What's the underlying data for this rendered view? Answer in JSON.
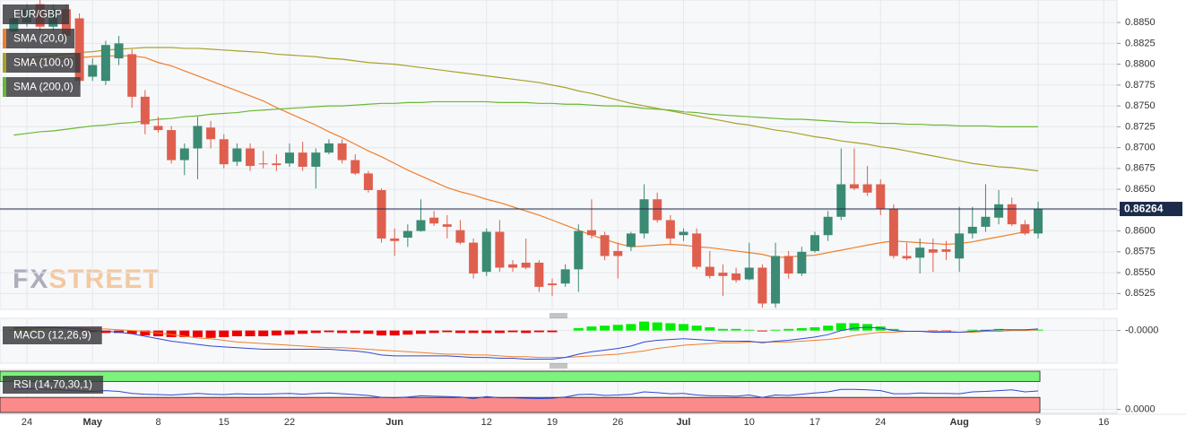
{
  "chart_data": {
    "type": "candlestick",
    "symbol": "EUR/GBP",
    "watermark": {
      "prefix": "FX",
      "suffix": "STREET"
    },
    "grid": true,
    "up_color": "#3b8a74",
    "down_color": "#df5f4e",
    "price_line_color": "#1c2b4a",
    "categories": [
      null,
      "24",
      null,
      null,
      null,
      null,
      "May",
      null,
      null,
      null,
      null,
      "8",
      null,
      null,
      null,
      null,
      "15",
      null,
      null,
      null,
      null,
      "22",
      null,
      null,
      null,
      null,
      null,
      null,
      null,
      "Jun",
      null,
      null,
      null,
      null,
      null,
      null,
      "12",
      null,
      null,
      null,
      null,
      "19",
      null,
      null,
      null,
      null,
      "26",
      null,
      null,
      null,
      null,
      "Jul",
      null,
      null,
      null,
      null,
      "10",
      null,
      null,
      null,
      null,
      "17",
      null,
      null,
      null,
      null,
      "24",
      null,
      null,
      null,
      null,
      null,
      "Aug",
      null,
      null,
      null,
      null,
      null,
      "9",
      null,
      null,
      null,
      null,
      "16"
    ],
    "open": [
      0.8839,
      0.885,
      0.8872,
      0.8845,
      0.8866,
      0.8855,
      0.8785,
      0.878,
      0.8807,
      0.8812,
      0.8761,
      0.8726,
      0.8721,
      0.8685,
      0.8699,
      0.8724,
      0.871,
      0.8683,
      0.8699,
      0.8681,
      0.8681,
      0.8681,
      0.8694,
      0.8677,
      0.8694,
      0.8705,
      0.8685,
      0.8669,
      0.8649,
      0.8591,
      0.8592,
      0.86,
      0.8616,
      0.8608,
      0.8601,
      0.8586,
      0.8551,
      0.8599,
      0.856,
      0.8562,
      0.8562,
      0.8537,
      0.8537,
      0.8554,
      0.8601,
      0.8595,
      0.8576,
      0.8581,
      0.8597,
      0.8638,
      0.8613,
      0.8595,
      0.8597,
      0.8557,
      0.855,
      0.8549,
      0.8542,
      0.8556,
      0.8513,
      0.857,
      0.8549,
      0.8576,
      0.8595,
      0.8617,
      0.8656,
      0.8656,
      0.8656,
      0.8627,
      0.857,
      0.8568,
      0.8578,
      0.8578,
      0.8567,
      0.8597,
      0.8605,
      0.8616,
      0.8632,
      0.8608,
      0.8597,
      null,
      null,
      null,
      null,
      null
    ],
    "high": [
      0.8861,
      0.8872,
      0.8877,
      0.8872,
      0.8872,
      0.8861,
      0.8807,
      0.8828,
      0.8834,
      0.8818,
      0.8769,
      0.8737,
      0.8726,
      0.8705,
      0.8737,
      0.8732,
      0.8716,
      0.8705,
      0.8705,
      0.8696,
      0.8692,
      0.8705,
      0.8707,
      0.8699,
      0.871,
      0.871,
      0.8692,
      0.8672,
      0.8651,
      0.8603,
      0.8608,
      0.8638,
      0.8624,
      0.8619,
      0.8613,
      0.8591,
      0.8603,
      0.8613,
      0.8565,
      0.8591,
      0.8565,
      0.8543,
      0.856,
      0.8608,
      0.8638,
      0.8599,
      0.8586,
      0.8599,
      0.8656,
      0.8646,
      0.8619,
      0.8603,
      0.8603,
      0.8576,
      0.856,
      0.8556,
      0.8586,
      0.856,
      0.8586,
      0.8576,
      0.8581,
      0.8599,
      0.8624,
      0.8699,
      0.8699,
      0.8678,
      0.8662,
      0.8632,
      0.8586,
      0.8591,
      0.8591,
      0.8588,
      0.8629,
      0.8629,
      0.8656,
      0.8649,
      0.864,
      0.8613,
      0.8635,
      null,
      null,
      null,
      null,
      null
    ],
    "low": [
      0.8834,
      0.8845,
      0.8839,
      0.8839,
      0.8828,
      0.8775,
      0.878,
      0.8775,
      0.8799,
      0.8748,
      0.8716,
      0.8718,
      0.8681,
      0.8667,
      0.8662,
      0.8699,
      0.8675,
      0.8678,
      0.8672,
      0.8675,
      0.8672,
      0.8677,
      0.8672,
      0.8651,
      0.8692,
      0.8681,
      0.8667,
      0.8646,
      0.8586,
      0.857,
      0.8581,
      0.8599,
      0.8606,
      0.8591,
      0.8584,
      0.8543,
      0.8546,
      0.8551,
      0.8551,
      0.8554,
      0.8527,
      0.8522,
      0.8533,
      0.8527,
      0.8591,
      0.8565,
      0.8543,
      0.8576,
      0.8591,
      0.861,
      0.8584,
      0.8588,
      0.8554,
      0.8543,
      0.8522,
      0.8538,
      0.8541,
      0.8508,
      0.8508,
      0.8543,
      0.8546,
      0.8574,
      0.8588,
      0.8613,
      0.8649,
      0.8642,
      0.8619,
      0.8567,
      0.8565,
      0.8549,
      0.8551,
      0.8565,
      0.8551,
      0.8591,
      0.8599,
      0.8608,
      0.8606,
      0.8595,
      0.8591,
      null,
      null,
      null,
      null,
      null
    ],
    "close": [
      0.8855,
      0.8866,
      0.8845,
      0.8866,
      0.8834,
      0.878,
      0.8799,
      0.8823,
      0.8825,
      0.8761,
      0.8728,
      0.8721,
      0.8685,
      0.8699,
      0.8726,
      0.871,
      0.868,
      0.8699,
      0.8678,
      0.868,
      0.8679,
      0.8694,
      0.8677,
      0.8694,
      0.8705,
      0.8685,
      0.8669,
      0.8649,
      0.8591,
      0.8588,
      0.86,
      0.8613,
      0.8609,
      0.8605,
      0.8586,
      0.8549,
      0.8599,
      0.8556,
      0.8556,
      0.8556,
      0.8533,
      0.8535,
      0.8554,
      0.86,
      0.8595,
      0.857,
      0.857,
      0.8597,
      0.8638,
      0.8613,
      0.8591,
      0.8599,
      0.8557,
      0.8546,
      0.8546,
      0.8541,
      0.8556,
      0.8513,
      0.857,
      0.8549,
      0.8575,
      0.8595,
      0.8617,
      0.8656,
      0.8651,
      0.8646,
      0.8627,
      0.857,
      0.8567,
      0.858,
      0.8574,
      0.8575,
      0.8597,
      0.8605,
      0.8617,
      0.8632,
      0.8608,
      0.8597,
      0.86264,
      null,
      null,
      null,
      null,
      null
    ],
    "ylim": [
      0.8506,
      0.8877
    ],
    "yticks": [
      {
        "value": 0.8525,
        "label": "0.8525"
      },
      {
        "value": 0.855,
        "label": "0.8550"
      },
      {
        "value": 0.8575,
        "label": "0.8575"
      },
      {
        "value": 0.86,
        "label": "0.8600"
      },
      {
        "value": 0.8625,
        "label": "0.8625"
      },
      {
        "value": 0.865,
        "label": "0.8650"
      },
      {
        "value": 0.8675,
        "label": "0.8675"
      },
      {
        "value": 0.87,
        "label": "0.8700"
      },
      {
        "value": 0.8725,
        "label": "0.8725"
      },
      {
        "value": 0.875,
        "label": "0.8750"
      },
      {
        "value": 0.8775,
        "label": "0.8775"
      },
      {
        "value": 0.88,
        "label": "0.8800"
      },
      {
        "value": 0.8825,
        "label": "0.8825"
      },
      {
        "value": 0.885,
        "label": "0.8850"
      }
    ],
    "series": [
      {
        "name": "SMA (20,0)",
        "color": "#f07f2a",
        "values": [
          0.88,
          0.8802,
          0.8804,
          0.8806,
          0.8807,
          0.8808,
          0.8809,
          0.881,
          0.881,
          0.881,
          0.8808,
          0.8802,
          0.8798,
          0.8792,
          0.8786,
          0.878,
          0.8774,
          0.8768,
          0.8762,
          0.8756,
          0.8748,
          0.8741,
          0.8734,
          0.8727,
          0.8719,
          0.8712,
          0.8704,
          0.8696,
          0.8689,
          0.8681,
          0.8673,
          0.8666,
          0.8659,
          0.8652,
          0.8647,
          0.8643,
          0.8638,
          0.8634,
          0.8629,
          0.8624,
          0.8619,
          0.8613,
          0.8607,
          0.8601,
          0.8595,
          0.859,
          0.8585,
          0.8581,
          0.8582,
          0.8583,
          0.8584,
          0.8583,
          0.8581,
          0.858,
          0.8578,
          0.8576,
          0.8574,
          0.8572,
          0.8568,
          0.8569,
          0.857,
          0.8571,
          0.8574,
          0.8577,
          0.858,
          0.8583,
          0.8586,
          0.8588,
          0.8587,
          0.8586,
          0.8585,
          0.8584,
          0.8585,
          0.8587,
          0.859,
          0.8593,
          0.8596,
          0.8599,
          0.8603,
          null,
          null,
          null,
          null,
          null
        ]
      },
      {
        "name": "SMA (100,0)",
        "color": "#a8a22a",
        "values": [
          0.8805,
          0.8807,
          0.8809,
          0.881,
          0.8812,
          0.8814,
          0.8815,
          0.8817,
          0.8818,
          0.8819,
          0.882,
          0.882,
          0.882,
          0.8819,
          0.8819,
          0.8818,
          0.8817,
          0.8816,
          0.8815,
          0.8814,
          0.8812,
          0.8811,
          0.881,
          0.8809,
          0.8807,
          0.8806,
          0.8804,
          0.8802,
          0.8801,
          0.88,
          0.8798,
          0.8796,
          0.8794,
          0.8792,
          0.879,
          0.8788,
          0.8786,
          0.8784,
          0.8782,
          0.878,
          0.8778,
          0.8775,
          0.8772,
          0.8768,
          0.8765,
          0.8761,
          0.8757,
          0.8753,
          0.875,
          0.8747,
          0.8744,
          0.8741,
          0.8738,
          0.8735,
          0.8732,
          0.8729,
          0.8727,
          0.8724,
          0.8721,
          0.8719,
          0.8716,
          0.8713,
          0.8711,
          0.8708,
          0.8706,
          0.8704,
          0.8701,
          0.8699,
          0.8696,
          0.8693,
          0.869,
          0.8687,
          0.8684,
          0.8681,
          0.8679,
          0.8677,
          0.8676,
          0.8674,
          0.8672,
          null,
          null,
          null,
          null,
          null
        ]
      },
      {
        "name": "SMA (200,0)",
        "color": "#6ab832",
        "values": [
          0.8715,
          0.8717,
          0.8719,
          0.872,
          0.8722,
          0.8724,
          0.8726,
          0.8727,
          0.8729,
          0.873,
          0.8732,
          0.8734,
          0.8735,
          0.8737,
          0.8738,
          0.874,
          0.8741,
          0.8742,
          0.8744,
          0.8745,
          0.8746,
          0.8747,
          0.8748,
          0.8749,
          0.875,
          0.875,
          0.8751,
          0.8752,
          0.8753,
          0.8753,
          0.8754,
          0.8754,
          0.8755,
          0.8755,
          0.8755,
          0.8755,
          0.8755,
          0.8754,
          0.8754,
          0.8754,
          0.8753,
          0.8753,
          0.8752,
          0.8752,
          0.8751,
          0.875,
          0.875,
          0.8749,
          0.8747,
          0.8746,
          0.8745,
          0.8743,
          0.8742,
          0.874,
          0.8739,
          0.8738,
          0.8737,
          0.8736,
          0.8735,
          0.8734,
          0.8734,
          0.8733,
          0.8732,
          0.8731,
          0.873,
          0.873,
          0.8729,
          0.8729,
          0.8728,
          0.8728,
          0.8727,
          0.8727,
          0.8726,
          0.8726,
          0.8726,
          0.8725,
          0.8725,
          0.8725,
          0.8725,
          null,
          null,
          null,
          null,
          null
        ]
      }
    ],
    "macd": {
      "label": "MACD (12,26,9)",
      "ylim": [
        -0.004,
        0.0015
      ],
      "yticks": [
        {
          "value": 0,
          "label": "-0.0000"
        }
      ],
      "macd_line": {
        "color": "#2f49d1",
        "values": [
          0.0003,
          0.0004,
          0.0004,
          0.0004,
          0.0003,
          0.0002,
          0.0,
          -0.0001,
          -0.0002,
          -0.0004,
          -0.0007,
          -0.001,
          -0.0013,
          -0.0015,
          -0.0017,
          -0.0019,
          -0.002,
          -0.0021,
          -0.0022,
          -0.0023,
          -0.0023,
          -0.0023,
          -0.0023,
          -0.0023,
          -0.0023,
          -0.0024,
          -0.0025,
          -0.0027,
          -0.003,
          -0.0031,
          -0.0031,
          -0.0031,
          -0.0031,
          -0.0031,
          -0.0032,
          -0.0033,
          -0.0033,
          -0.0034,
          -0.0034,
          -0.0035,
          -0.0035,
          -0.0035,
          -0.0033,
          -0.0029,
          -0.0026,
          -0.0024,
          -0.0022,
          -0.0019,
          -0.0014,
          -0.0012,
          -0.0011,
          -0.001,
          -0.0011,
          -0.0012,
          -0.0013,
          -0.0013,
          -0.0013,
          -0.0015,
          -0.0013,
          -0.0012,
          -0.001,
          -0.0008,
          -0.0005,
          0.0,
          0.0003,
          0.0004,
          0.0003,
          0.0,
          -0.0001,
          -0.0001,
          -0.0002,
          -0.0002,
          -0.0002,
          -0.0001,
          0.0,
          0.0001,
          0.0001,
          0.0001,
          0.0002,
          null,
          null,
          null,
          null,
          null
        ]
      },
      "signal_line": {
        "color": "#f07f2a",
        "values": [
          0.0002,
          0.0002,
          0.0003,
          0.0003,
          0.0003,
          0.0003,
          0.0002,
          0.0002,
          0.0001,
          0.0,
          -0.0001,
          -0.0003,
          -0.0005,
          -0.0007,
          -0.0009,
          -0.001,
          -0.0012,
          -0.0014,
          -0.0015,
          -0.0016,
          -0.0017,
          -0.0018,
          -0.0019,
          -0.002,
          -0.0021,
          -0.0021,
          -0.0022,
          -0.0023,
          -0.0024,
          -0.0025,
          -0.0026,
          -0.0027,
          -0.0028,
          -0.0029,
          -0.0029,
          -0.003,
          -0.003,
          -0.0031,
          -0.0032,
          -0.0032,
          -0.0033,
          -0.0033,
          -0.0033,
          -0.0032,
          -0.0031,
          -0.003,
          -0.0029,
          -0.0027,
          -0.0025,
          -0.0022,
          -0.002,
          -0.0018,
          -0.0017,
          -0.0016,
          -0.0015,
          -0.0015,
          -0.0014,
          -0.0014,
          -0.0014,
          -0.0014,
          -0.0013,
          -0.0012,
          -0.0011,
          -0.0009,
          -0.0006,
          -0.0004,
          -0.0002,
          -0.0002,
          -0.0001,
          -0.0001,
          -0.0001,
          -0.0001,
          -0.0002,
          -0.0002,
          -0.0001,
          -0.0001,
          0.0,
          0.0,
          0.0001,
          null,
          null,
          null,
          null,
          null
        ]
      },
      "histogram": {
        "positive_color": "#00ee00",
        "negative_color": "#ee0000",
        "values": [
          0.0001,
          0.0002,
          0.0001,
          0.0001,
          0.0,
          -0.0001,
          -0.0002,
          -0.0003,
          -0.0003,
          -0.0004,
          -0.0006,
          -0.0007,
          -0.0008,
          -0.0008,
          -0.0008,
          -0.0009,
          -0.0008,
          -0.0007,
          -0.0007,
          -0.0007,
          -0.0006,
          -0.0005,
          -0.0004,
          -0.0003,
          -0.0002,
          -0.0003,
          -0.0003,
          -0.0004,
          -0.0006,
          -0.0006,
          -0.0005,
          -0.0004,
          -0.0003,
          -0.0002,
          -0.0003,
          -0.0003,
          -0.0003,
          -0.0003,
          -0.0002,
          -0.0003,
          -0.0002,
          -0.0002,
          0.0,
          0.0003,
          0.0005,
          0.0006,
          0.0007,
          0.0008,
          0.0011,
          0.001,
          0.0009,
          0.0008,
          0.0006,
          0.0004,
          0.0002,
          0.0002,
          0.0001,
          -0.0001,
          0.0001,
          0.0002,
          0.0003,
          0.0004,
          0.0006,
          0.0009,
          0.0009,
          0.0008,
          0.0005,
          0.0002,
          0.0,
          0.0,
          -0.0001,
          -0.0001,
          0.0,
          0.0001,
          0.0001,
          0.0002,
          0.0001,
          0.0001,
          0.0001,
          null,
          null,
          null,
          null,
          null
        ]
      }
    },
    "rsi": {
      "label": "RSI (14,70,30,1)",
      "ylim": [
        -10,
        100
      ],
      "yticks": [
        {
          "value": 0,
          "label": "0.0000"
        }
      ],
      "upper_band": 70,
      "lower_band": 30,
      "upper_color": "#7df27d",
      "lower_color": "#fb8a8a",
      "line": {
        "color": "#2f49d1",
        "values": [
          50,
          52,
          51,
          50,
          48,
          46,
          45,
          47,
          45,
          40,
          38,
          37,
          36,
          38,
          40,
          38,
          37,
          39,
          38,
          38,
          39,
          40,
          38,
          40,
          41,
          39,
          37,
          35,
          30,
          29,
          31,
          34,
          33,
          32,
          31,
          27,
          32,
          29,
          29,
          28,
          27,
          28,
          31,
          37,
          38,
          35,
          36,
          38,
          44,
          42,
          39,
          40,
          36,
          34,
          34,
          33,
          36,
          30,
          36,
          35,
          38,
          41,
          44,
          50,
          50,
          49,
          47,
          39,
          39,
          41,
          40,
          40,
          39,
          44,
          45,
          47,
          49,
          44,
          46,
          null,
          null,
          null,
          null,
          null
        ]
      }
    }
  }
}
